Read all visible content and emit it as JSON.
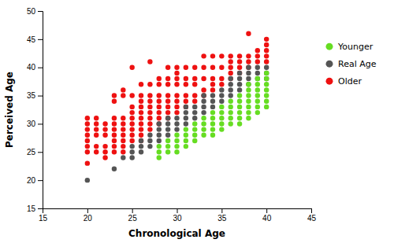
{
  "chart_data": {
    "type": "scatter",
    "xlabel": "Chronological Age",
    "ylabel": "Perceived Age",
    "xlim": [
      15,
      45
    ],
    "ylim": [
      15,
      50
    ],
    "xticks": [
      15,
      20,
      25,
      30,
      35,
      40,
      45
    ],
    "yticks": [
      15,
      20,
      25,
      30,
      35,
      40,
      45,
      50
    ],
    "legend": "right",
    "series": [
      {
        "name": "Younger",
        "color": "#66dd22",
        "x": [
          28,
          28,
          28,
          29,
          29,
          29,
          30,
          30,
          30,
          30,
          31,
          31,
          31,
          31,
          32,
          32,
          32,
          32,
          33,
          33,
          33,
          33,
          34,
          34,
          34,
          34,
          34,
          35,
          35,
          35,
          35,
          35,
          36,
          36,
          36,
          36,
          36,
          37,
          37,
          37,
          37,
          37,
          37,
          38,
          38,
          38,
          38,
          38,
          38,
          38,
          39,
          39,
          39,
          39,
          39,
          39,
          39,
          40,
          40,
          40,
          40,
          40,
          40,
          40
        ],
        "values": [
          24,
          25,
          26,
          25,
          26,
          27,
          25,
          26,
          27,
          28,
          26,
          27,
          28,
          29,
          27,
          28,
          29,
          30,
          28,
          29,
          30,
          31,
          28,
          29,
          30,
          31,
          32,
          29,
          30,
          31,
          32,
          33,
          30,
          31,
          32,
          33,
          34,
          30,
          31,
          32,
          33,
          34,
          35,
          31,
          32,
          33,
          34,
          35,
          36,
          37,
          32,
          33,
          34,
          35,
          36,
          37,
          38,
          33,
          34,
          35,
          36,
          37,
          38,
          39
        ]
      },
      {
        "name": "Real Age",
        "color": "#555555",
        "x": [
          20,
          23,
          24,
          25,
          25,
          25,
          26,
          26,
          26,
          27,
          27,
          27,
          28,
          28,
          28,
          28,
          29,
          29,
          29,
          29,
          30,
          30,
          30,
          31,
          31,
          31,
          31,
          32,
          32,
          32,
          33,
          33,
          33,
          33,
          34,
          34,
          34,
          35,
          35,
          35,
          36,
          36,
          36,
          36,
          37,
          37,
          37,
          37,
          38,
          38,
          38,
          38,
          39,
          39,
          39,
          40,
          40,
          40
        ],
        "values": [
          20,
          22,
          24,
          24,
          25,
          26,
          25,
          26,
          27,
          26,
          27,
          28,
          27,
          28,
          29,
          30,
          28,
          29,
          30,
          31,
          29,
          30,
          31,
          30,
          31,
          32,
          33,
          31,
          32,
          33,
          32,
          33,
          34,
          35,
          33,
          34,
          35,
          34,
          35,
          36,
          35,
          36,
          37,
          38,
          36,
          37,
          38,
          39,
          37,
          38,
          39,
          40,
          38,
          39,
          40,
          38,
          39,
          40
        ]
      },
      {
        "name": "Older",
        "color": "#ee1111",
        "x": [
          20,
          20,
          20,
          20,
          20,
          20,
          20,
          20,
          21,
          21,
          21,
          21,
          21,
          21,
          22,
          22,
          22,
          22,
          22,
          22,
          23,
          23,
          23,
          23,
          23,
          23,
          23,
          23,
          23,
          24,
          24,
          24,
          24,
          24,
          24,
          24,
          24,
          24,
          25,
          25,
          25,
          25,
          25,
          25,
          25,
          25,
          25,
          26,
          26,
          26,
          26,
          26,
          26,
          26,
          26,
          26,
          26,
          27,
          27,
          27,
          27,
          27,
          27,
          27,
          27,
          27,
          28,
          28,
          28,
          28,
          28,
          28,
          28,
          28,
          29,
          29,
          29,
          29,
          29,
          29,
          29,
          29,
          30,
          30,
          30,
          30,
          30,
          30,
          30,
          30,
          31,
          31,
          31,
          31,
          31,
          31,
          32,
          32,
          32,
          32,
          32,
          33,
          33,
          33,
          33,
          33,
          34,
          34,
          34,
          34,
          34,
          35,
          35,
          35,
          35,
          36,
          36,
          36,
          36,
          36,
          37,
          37,
          37,
          37,
          38,
          38,
          38,
          38,
          39,
          39,
          39,
          40,
          40,
          40,
          40,
          40
        ],
        "values": [
          23,
          25,
          26,
          27,
          28,
          29,
          30,
          31,
          25,
          26,
          28,
          29,
          30,
          31,
          24,
          25,
          26,
          28,
          29,
          30,
          25,
          26,
          27,
          28,
          29,
          30,
          31,
          34,
          35,
          25,
          26,
          27,
          28,
          29,
          30,
          31,
          35,
          36,
          27,
          28,
          29,
          30,
          31,
          32,
          33,
          35,
          40,
          27,
          28,
          29,
          30,
          31,
          32,
          33,
          34,
          35,
          37,
          29,
          30,
          31,
          32,
          33,
          34,
          35,
          37,
          41,
          30,
          31,
          32,
          33,
          34,
          35,
          37,
          38,
          31,
          32,
          33,
          34,
          35,
          37,
          38,
          40,
          32,
          33,
          34,
          35,
          37,
          38,
          39,
          40,
          33,
          34,
          35,
          37,
          38,
          40,
          34,
          35,
          37,
          38,
          40,
          35,
          36,
          38,
          40,
          42,
          36,
          37,
          38,
          40,
          42,
          37,
          38,
          40,
          42,
          38,
          39,
          40,
          41,
          42,
          39,
          40,
          41,
          42,
          40,
          41,
          42,
          46,
          41,
          42,
          43,
          41,
          42,
          43,
          44,
          45
        ]
      }
    ]
  }
}
